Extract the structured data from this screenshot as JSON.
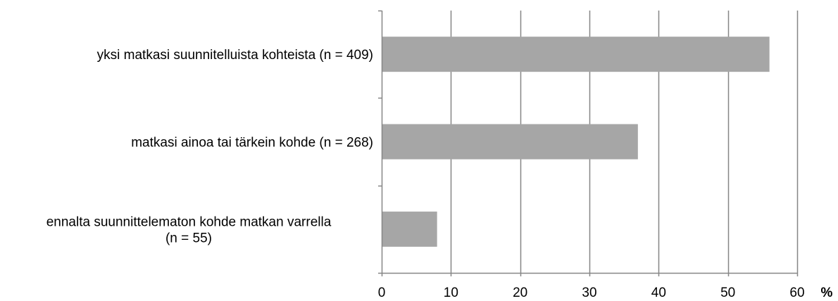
{
  "chart_data": {
    "type": "bar",
    "orientation": "horizontal",
    "categories": [
      [
        "yksi matkasi suunnitelluista kohteista (n = 409)"
      ],
      [
        "matkasi ainoa tai tärkein kohde (n = 268)"
      ],
      [
        "ennalta suunnittelematon kohde matkan varrella",
        "(n = 55)"
      ]
    ],
    "values": [
      56,
      37,
      8
    ],
    "xlim": [
      0,
      60
    ],
    "xticks": [
      0,
      10,
      20,
      30,
      40,
      50,
      60
    ],
    "xunit": "%",
    "grid": true,
    "bar_color": "#a6a6a6",
    "grid_color": "#868686"
  }
}
